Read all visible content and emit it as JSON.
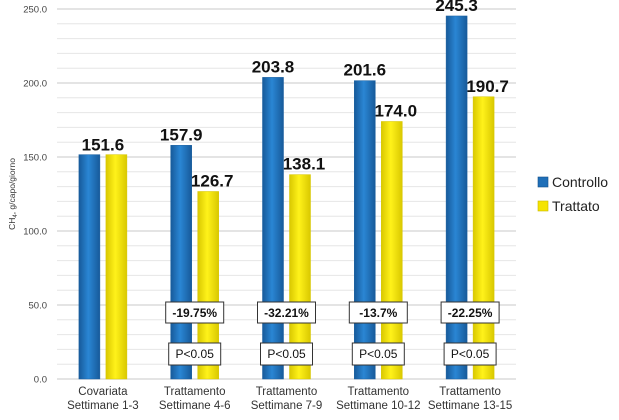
{
  "chart_data": {
    "type": "bar",
    "title": "",
    "xlabel": "",
    "ylabel": "CH4, g/capo/giorno",
    "ylabel_main": "CH",
    "ylabel_sub": "4",
    "ylabel_rest": ", g/capo/giorno",
    "ylim": [
      0,
      250
    ],
    "yticks": [
      "0.0",
      "50.0",
      "100.0",
      "150.0",
      "200.0",
      "250.0"
    ],
    "ytick_values": [
      0,
      50,
      100,
      150,
      200,
      250
    ],
    "minor_grid_step": 10,
    "grid": true,
    "legend_position": "right",
    "categories": [
      [
        "Covariata",
        "Settimane 1-3"
      ],
      [
        "Trattamento",
        "Settimane 4-6"
      ],
      [
        "Trattamento",
        "Settimane 7-9"
      ],
      [
        "Trattamento",
        "Settimane 10-12"
      ],
      [
        "Trattamento",
        "Settimane 13-15"
      ]
    ],
    "series": [
      {
        "name": "Controllo",
        "color": "#1f6fb8",
        "values": [
          151.6,
          157.9,
          203.8,
          201.6,
          245.3
        ],
        "labels": [
          "151.6",
          "157.9",
          "203.8",
          "201.6",
          "245.3"
        ]
      },
      {
        "name": "Trattato",
        "color": "#f5e400",
        "values": [
          151.6,
          126.7,
          138.1,
          174.0,
          190.7
        ],
        "labels": [
          null,
          "126.7",
          "138.1",
          "174.0",
          "190.7"
        ]
      }
    ],
    "annotations": [
      null,
      {
        "change": "-19.75%",
        "p": "P<0.05"
      },
      {
        "change": "-32.21%",
        "p": "P<0.05"
      },
      {
        "change": "-13.7%",
        "p": "P<0.05"
      },
      {
        "change": "-22.25%",
        "p": "P<0.05"
      }
    ]
  }
}
